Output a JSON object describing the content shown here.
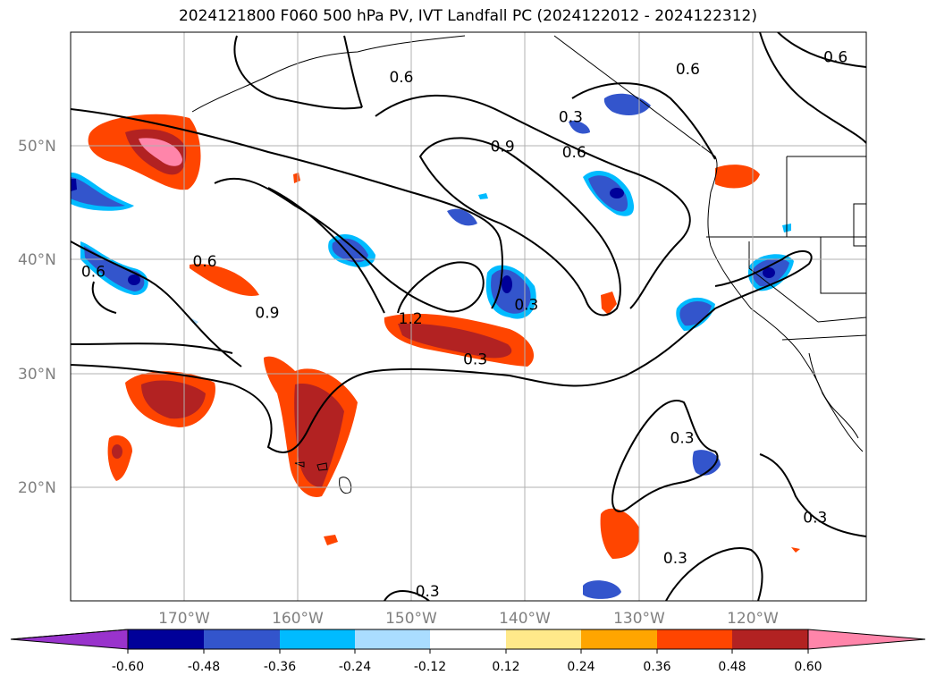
{
  "title": "2024121800 F060 500 hPa PV, IVT Landfall PC (2024122012 - 2024122312)",
  "map": {
    "extent": {
      "lon_min": -180,
      "lon_max": -110,
      "lat_min": 10,
      "lat_max": 60
    },
    "lat_ticks": [
      {
        "value": 50,
        "label": "50°N"
      },
      {
        "value": 40,
        "label": "40°N"
      },
      {
        "value": 30,
        "label": "30°N"
      },
      {
        "value": 20,
        "label": "20°N"
      }
    ],
    "lon_ticks": [
      {
        "value": -170,
        "label": "170°W"
      },
      {
        "value": -160,
        "label": "160°W"
      },
      {
        "value": -150,
        "label": "150°W"
      },
      {
        "value": -140,
        "label": "140°W"
      },
      {
        "value": -130,
        "label": "130°W"
      },
      {
        "value": -120,
        "label": "120°W"
      }
    ],
    "contour_labels": [
      "0.3",
      "0.6",
      "0.9",
      "1.2"
    ],
    "contour_label_list": [
      {
        "text": "0.6",
        "lon": -178.0,
        "lat": 38.8
      },
      {
        "text": "0.6",
        "lon": -150.9,
        "lat": 55.9
      },
      {
        "text": "0.6",
        "lon": -168.2,
        "lat": 39.7
      },
      {
        "text": "0.9",
        "lon": -162.7,
        "lat": 35.2
      },
      {
        "text": "1.2",
        "lon": -150.1,
        "lat": 34.7
      },
      {
        "text": "0.3",
        "lon": -144.4,
        "lat": 31.1
      },
      {
        "text": "0.9",
        "lon": -142.0,
        "lat": 49.8
      },
      {
        "text": "0.3",
        "lon": -139.9,
        "lat": 35.9
      },
      {
        "text": "0.3",
        "lon": -136.0,
        "lat": 52.4
      },
      {
        "text": "0.6",
        "lon": -135.7,
        "lat": 49.3
      },
      {
        "text": "0.6",
        "lon": -125.7,
        "lat": 56.6
      },
      {
        "text": "0.6",
        "lon": -112.7,
        "lat": 57.7
      },
      {
        "text": "0.3",
        "lon": -126.2,
        "lat": 24.2
      },
      {
        "text": "0.3",
        "lon": -114.5,
        "lat": 17.2
      },
      {
        "text": "0.3",
        "lon": -126.8,
        "lat": 13.6
      },
      {
        "text": "0.3",
        "lon": -148.6,
        "lat": 10.7
      }
    ]
  },
  "colorbar": {
    "levels": [
      "-0.60",
      "-0.48",
      "-0.36",
      "-0.24",
      "-0.12",
      "0.12",
      "0.24",
      "0.36",
      "0.48",
      "0.60"
    ],
    "colors": [
      "#9933cc",
      "#000099",
      "#3355cc",
      "#00bbff",
      "#aaddff",
      "#ffffff",
      "#ffe98a",
      "#ffa500",
      "#ff4500",
      "#b22222",
      "#ff85aa"
    ]
  }
}
